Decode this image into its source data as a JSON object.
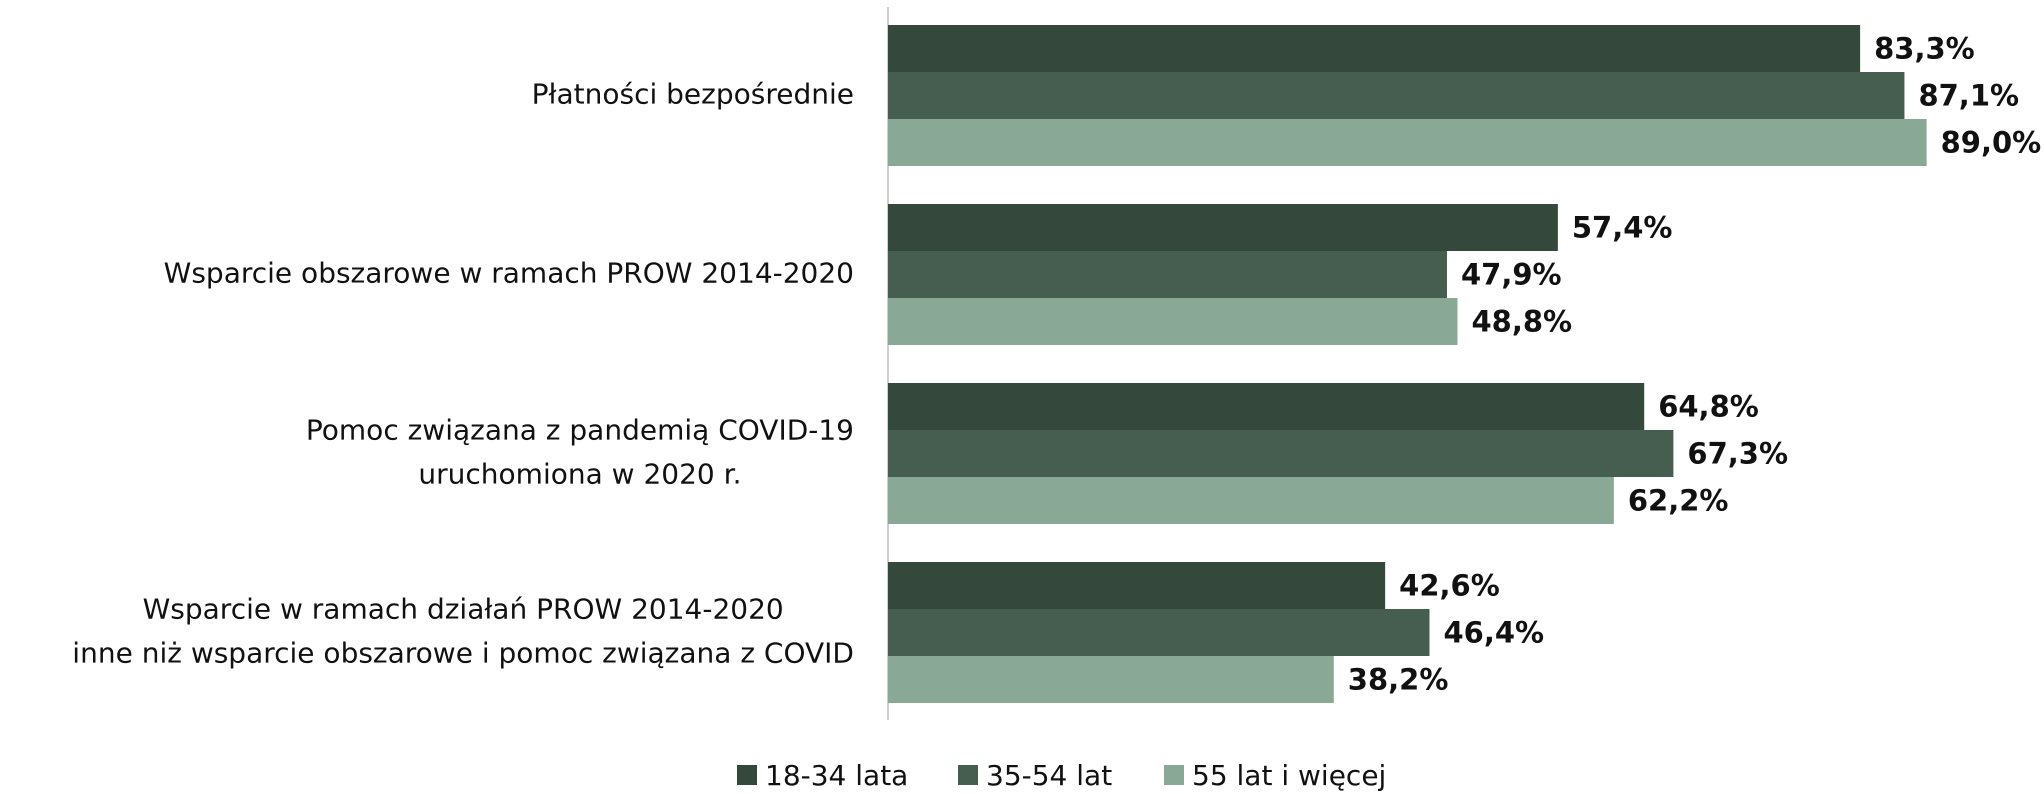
{
  "chart_data": {
    "type": "barh",
    "categories": [
      [
        "Płatności bezpośrednie"
      ],
      [
        "Wsparcie obszarowe w ramach PROW 2014-2020"
      ],
      [
        "Pomoc związana z pandemią COVID-19",
        "uruchomiona w 2020 r."
      ],
      [
        "Wsparcie w ramach działań PROW 2014-2020",
        "inne niż wsparcie obszarowe i pomoc związana z COVID"
      ]
    ],
    "series": [
      {
        "name": "18-34 lata",
        "color": "#34483c",
        "values": [
          83.3,
          57.4,
          64.8,
          42.6
        ],
        "value_labels": [
          "83,3%",
          "57,4%",
          "64,8%",
          "42,6%"
        ]
      },
      {
        "name": "35-54 lat",
        "color": "#455e50",
        "values": [
          87.1,
          47.9,
          67.3,
          46.4
        ],
        "value_labels": [
          "87,1%",
          "47,9%",
          "67,3%",
          "46,4%"
        ]
      },
      {
        "name": "55 lat i więcej",
        "color": "#8aa896",
        "values": [
          89.0,
          48.8,
          62.2,
          38.2
        ],
        "value_labels": [
          "89,0%",
          "48,8%",
          "62,2%",
          "38,2%"
        ]
      }
    ],
    "legend": "bottom"
  }
}
